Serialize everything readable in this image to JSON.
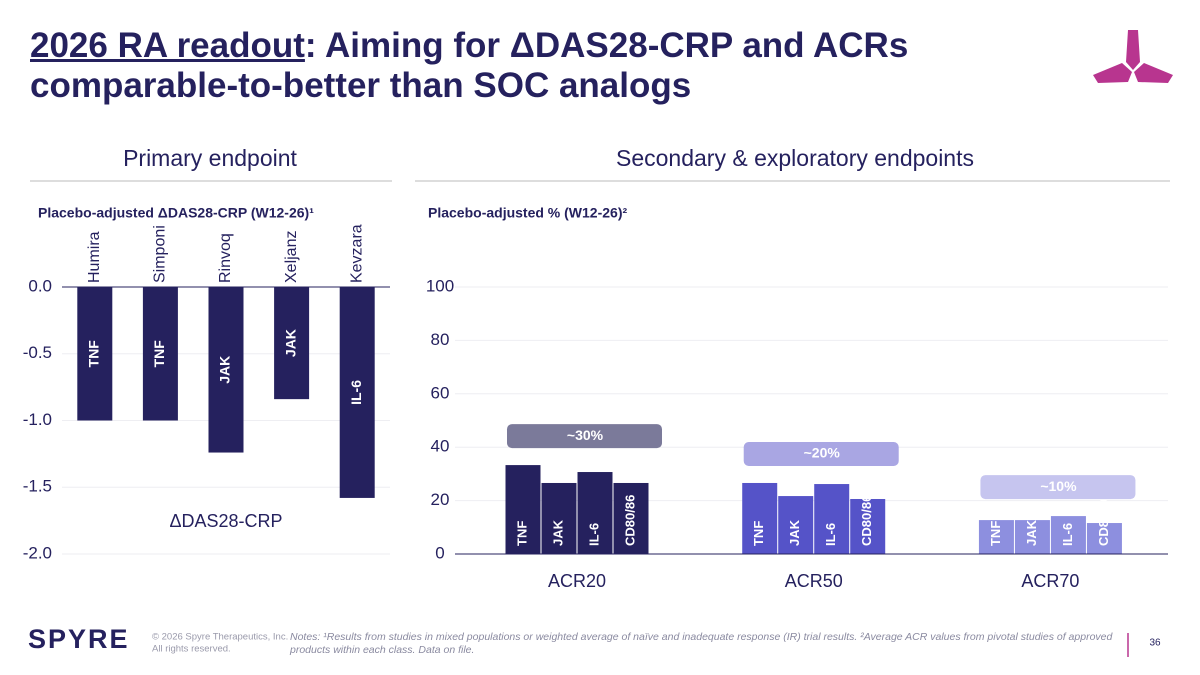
{
  "header": {
    "title_lead": "2026 RA readout",
    "title_rest": ": Aiming for ΔDAS28-CRP and ACRs comparable-to-better than SOC analogs"
  },
  "chart_data": [
    {
      "type": "bar",
      "section": "Primary endpoint",
      "subtitle": "Placebo-adjusted ΔDAS28-CRP (W12-26)¹",
      "series_label": "ΔDAS28-CRP",
      "categories": [
        "Humira",
        "Simponi",
        "Rinvoq",
        "Xeljanz",
        "Kevzara"
      ],
      "values": [
        -1.0,
        -1.0,
        -1.24,
        -0.84,
        -1.58
      ],
      "bar_labels": [
        "TNF",
        "TNF",
        "JAK",
        "JAK",
        "IL-6"
      ],
      "color": "#25215e",
      "ylim": [
        -2,
        0
      ],
      "yticks": [
        {
          "value": 0,
          "label": "0.0"
        },
        {
          "value": -0.5,
          "label": "-0.5"
        },
        {
          "value": -1,
          "label": "-1.0"
        },
        {
          "value": -1.5,
          "label": "-1.5"
        },
        {
          "value": -2,
          "label": "-2.0"
        }
      ],
      "grid": true
    },
    {
      "type": "grouped_bar",
      "section": "Secondary & exploratory endpoints",
      "subtitle": "Placebo-adjusted % (W12-26)²",
      "categories": [
        "ACR20",
        "ACR50",
        "ACR70"
      ],
      "category_colors": [
        "#25215e",
        "#5553c8",
        "#8d8fdf"
      ],
      "series": [
        {
          "name": "TNF",
          "values": [
            33.3,
            26.6,
            12.7
          ]
        },
        {
          "name": "JAK",
          "values": [
            26.6,
            21.7,
            12.7
          ]
        },
        {
          "name": "IL-6",
          "values": [
            30.7,
            26.2,
            14.2
          ]
        },
        {
          "name": "CD80/86",
          "values": [
            26.6,
            20.6,
            11.6
          ]
        }
      ],
      "annotations": [
        {
          "label": "~30%",
          "color": "#7b7a9a"
        },
        {
          "label": "~20%",
          "color": "#a9a6e3"
        },
        {
          "label": "~10%",
          "color": "#c6c5ef"
        }
      ],
      "ylim": [
        0,
        100
      ],
      "yticks": [
        0,
        20,
        40,
        60,
        80,
        100
      ],
      "grid": true
    }
  ],
  "footer": {
    "logo": "SPYRE",
    "copyright": [
      "© 2026 Spyre Therapeutics, Inc.",
      "All rights reserved."
    ],
    "notes": "Notes: ¹Results from studies in mixed populations or weighted average of naïve and inadequate response (IR) trial results. ²Average ACR values from pivotal studies of approved products within each class. Data on file.",
    "page": 36
  }
}
